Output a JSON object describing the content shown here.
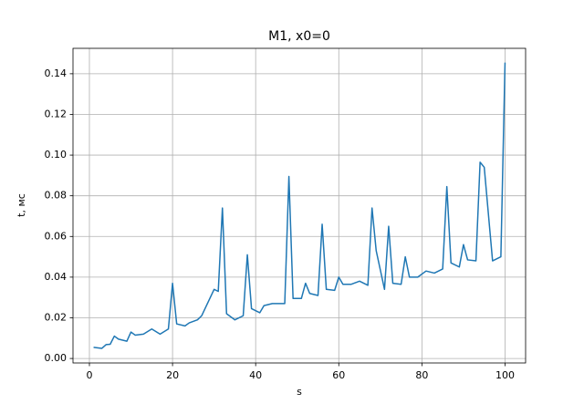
{
  "chart_data": {
    "type": "line",
    "title": "M1, x0=0",
    "x_label": "s",
    "y_label": "t, мс",
    "x": [
      1,
      3,
      4,
      5,
      6,
      7,
      9,
      10,
      11,
      13,
      15,
      17,
      19,
      20,
      21,
      23,
      24,
      26,
      27,
      30,
      31,
      32,
      33,
      35,
      37,
      38,
      39,
      41,
      42,
      44,
      47,
      48,
      49,
      51,
      52,
      53,
      55,
      56,
      57,
      59,
      60,
      61,
      63,
      65,
      67,
      68,
      69,
      71,
      72,
      73,
      75,
      76,
      77,
      79,
      81,
      83,
      85,
      86,
      87,
      89,
      90,
      91,
      93,
      94,
      95,
      97,
      99,
      100
    ],
    "series": [
      {
        "name": "M1",
        "color": "#1f77b4",
        "values": [
          0.0055,
          0.005,
          0.0068,
          0.007,
          0.011,
          0.0095,
          0.0085,
          0.013,
          0.0115,
          0.012,
          0.0145,
          0.012,
          0.0145,
          0.037,
          0.017,
          0.016,
          0.0175,
          0.019,
          0.021,
          0.034,
          0.033,
          0.074,
          0.022,
          0.019,
          0.021,
          0.051,
          0.0245,
          0.0225,
          0.026,
          0.027,
          0.027,
          0.0895,
          0.0295,
          0.0295,
          0.037,
          0.032,
          0.031,
          0.066,
          0.034,
          0.0335,
          0.04,
          0.0365,
          0.0365,
          0.038,
          0.036,
          0.074,
          0.053,
          0.034,
          0.065,
          0.037,
          0.0365,
          0.05,
          0.04,
          0.04,
          0.043,
          0.042,
          0.044,
          0.0845,
          0.047,
          0.045,
          0.056,
          0.0485,
          0.048,
          0.0965,
          0.094,
          0.048,
          0.05,
          0.1455
        ]
      }
    ],
    "xlim": [
      -3.95,
      104.95
    ],
    "ylim": [
      -0.0022,
      0.1525
    ],
    "xticks": [
      0,
      20,
      40,
      60,
      80,
      100
    ],
    "yticks": [
      {
        "value": 0,
        "label": "0.00"
      },
      {
        "value": 0.02,
        "label": "0.02"
      },
      {
        "value": 0.04,
        "label": "0.04"
      },
      {
        "value": 0.06,
        "label": "0.06"
      },
      {
        "value": 0.08,
        "label": "0.08"
      },
      {
        "value": 0.1,
        "label": "0.10"
      },
      {
        "value": 0.12,
        "label": "0.12"
      },
      {
        "value": 0.14,
        "label": "0.14"
      }
    ],
    "grid": true
  }
}
